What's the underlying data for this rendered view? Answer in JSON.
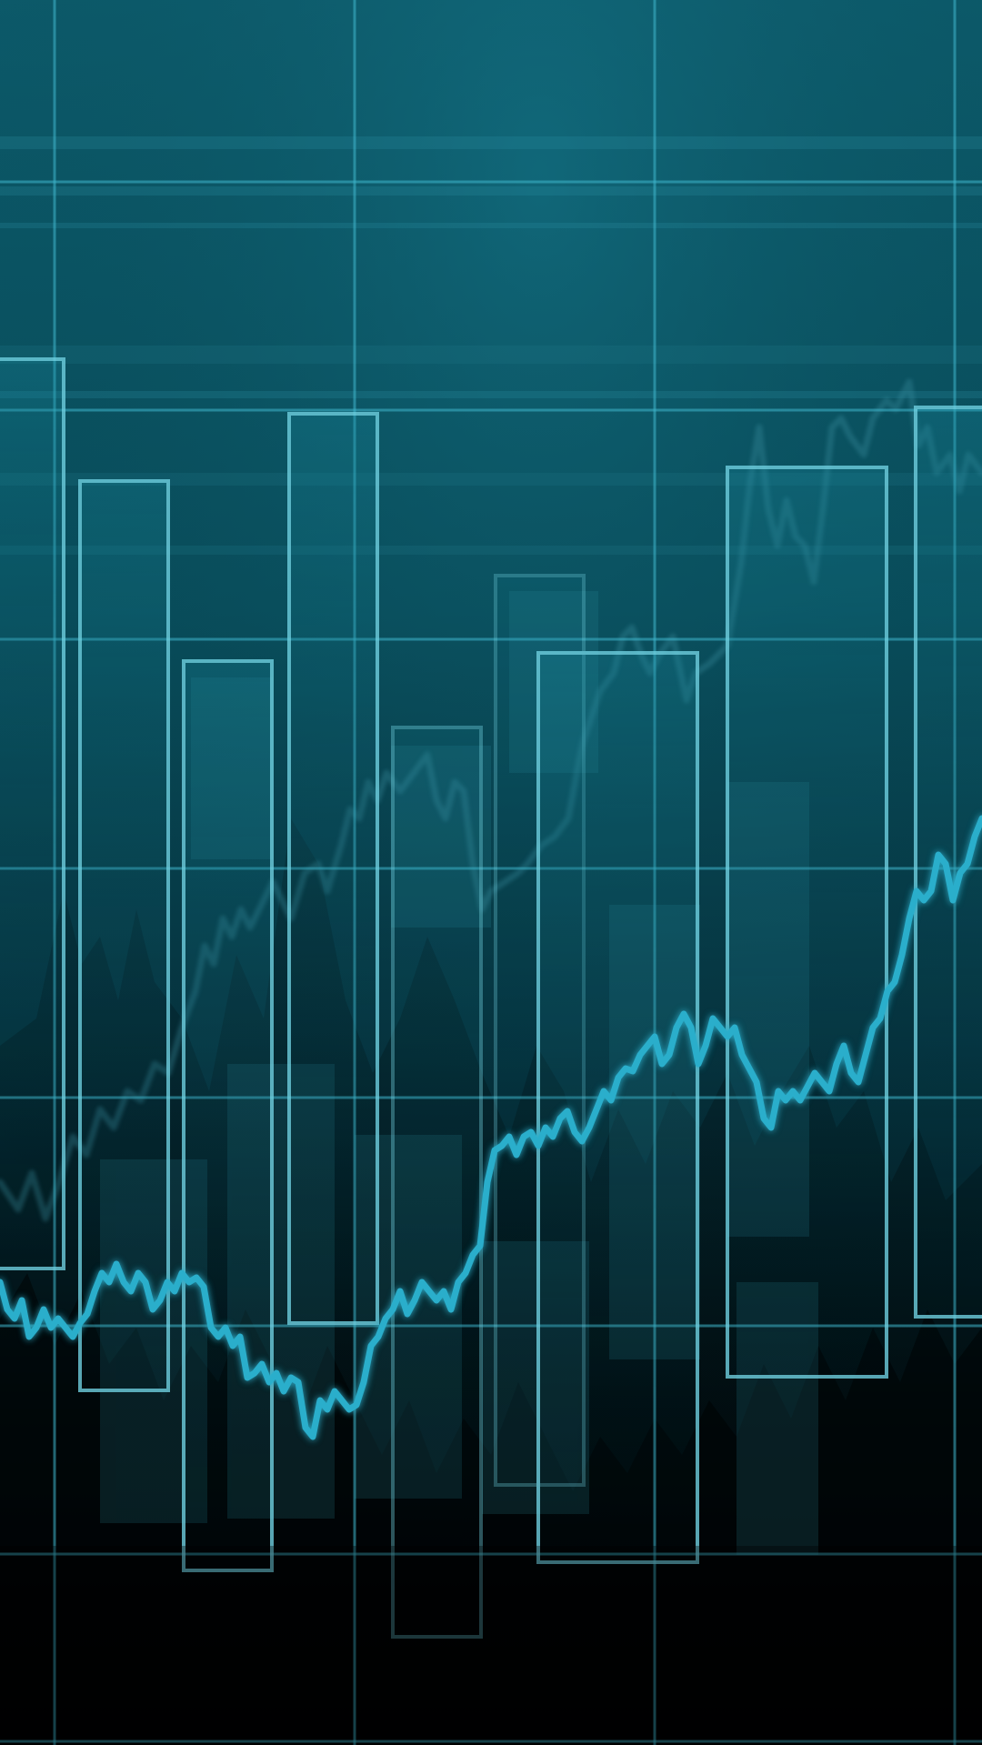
{
  "wallpaper": {
    "subject": "abstract-financial-chart",
    "palette": {
      "top": "#0c5f70",
      "mid": "#07424f",
      "bottom": "#010406",
      "grid": "#3fb6cc",
      "bar_outline": "#6fcfdf",
      "line": "#2aaecb",
      "ghost_line": "#3a8fa0"
    }
  }
}
